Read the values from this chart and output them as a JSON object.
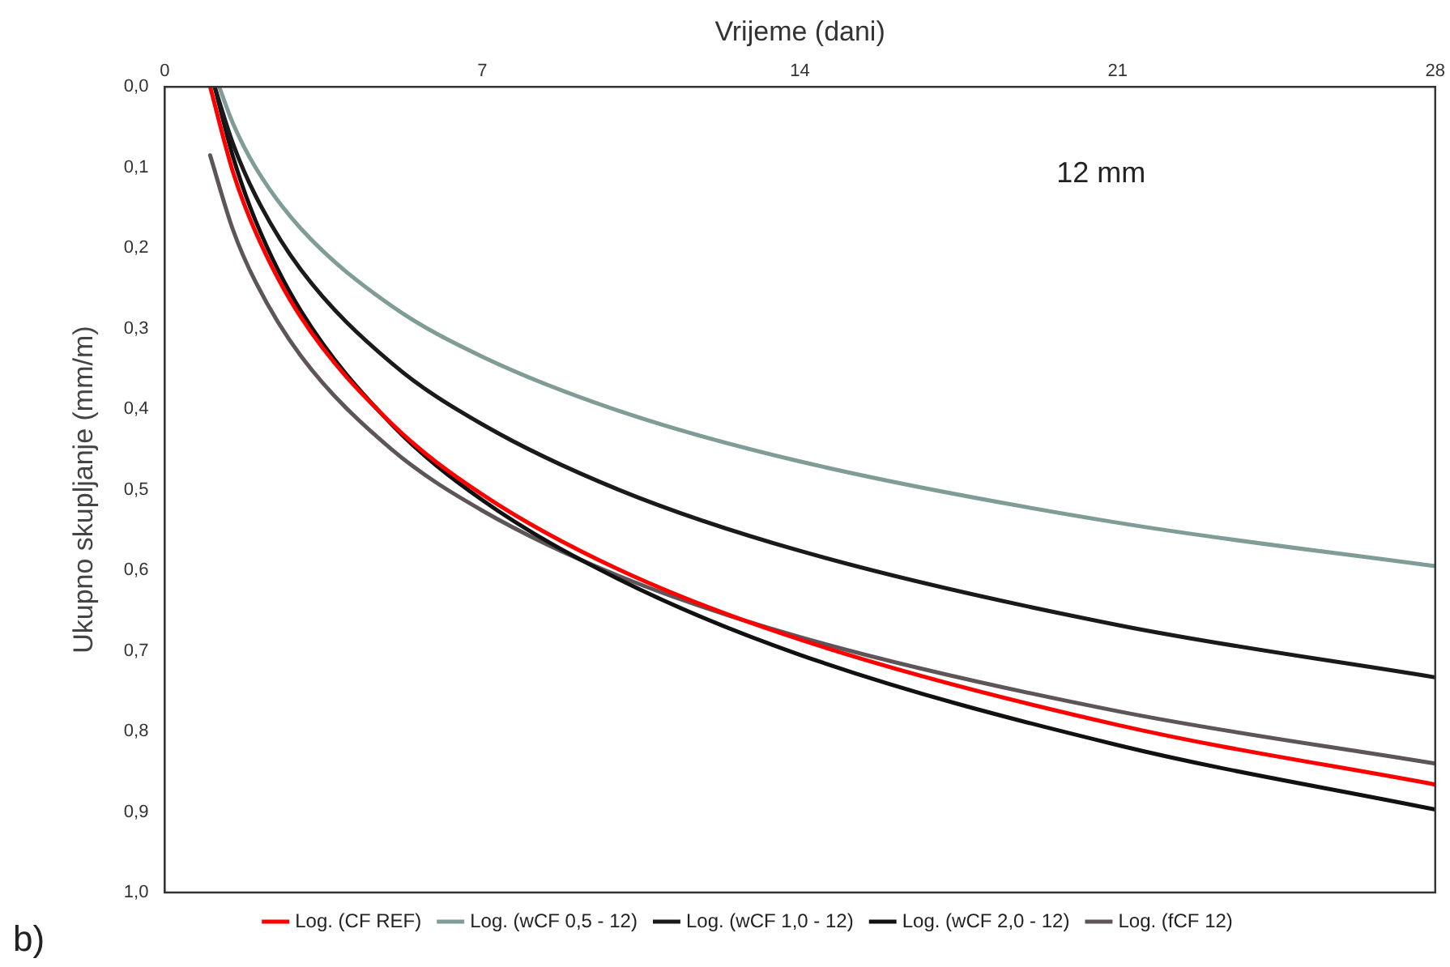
{
  "chart_data": {
    "type": "line",
    "xlabel": "Vrijeme (dani)",
    "ylabel": "Ukupno skupljanje (mm/m)",
    "xlim": [
      0,
      28
    ],
    "xticks": [
      0,
      7,
      14,
      21,
      28
    ],
    "ylim": [
      1,
      0
    ],
    "yticks": [
      {
        "value": 0,
        "label": "0,0"
      },
      {
        "value": 0.1,
        "label": "0,1"
      },
      {
        "value": 0.2,
        "label": "0,2"
      },
      {
        "value": 0.3,
        "label": "0,3"
      },
      {
        "value": 0.4,
        "label": "0,4"
      },
      {
        "value": 0.5,
        "label": "0,5"
      },
      {
        "value": 0.6,
        "label": "0,6"
      },
      {
        "value": 0.7,
        "label": "0,7"
      },
      {
        "value": 0.8,
        "label": "0,8"
      },
      {
        "value": 0.9,
        "label": "0,9"
      },
      {
        "value": 1,
        "label": "1,0"
      }
    ],
    "grid": false,
    "legend": "bottom",
    "marker": "none",
    "line_style": "solid",
    "annotations": [
      "12 mm",
      "b)"
    ],
    "series": [
      {
        "name": "Log. (CF REF)",
        "color": "#ff0000",
        "x": [
          1,
          1.5,
          2,
          3,
          5,
          7,
          10,
          14,
          21,
          28
        ],
        "values": [
          0,
          0.105,
          0.18,
          0.286,
          0.418,
          0.506,
          0.599,
          0.686,
          0.792,
          0.866
        ]
      },
      {
        "name": "Log. (wCF 0,5 - 12)",
        "color": "#7f9c96",
        "x": [
          1.2,
          1.5,
          2,
          3,
          5,
          7,
          10,
          14,
          21,
          28
        ],
        "values": [
          0,
          0.045,
          0.1,
          0.176,
          0.272,
          0.335,
          0.402,
          0.465,
          0.541,
          0.595
        ]
      },
      {
        "name": "Log. (wCF 1,0 - 12)",
        "color": "#1a1a1a",
        "x": [
          1.1,
          1.5,
          2,
          3,
          5,
          7,
          10,
          14,
          21,
          28
        ],
        "values": [
          0,
          0.07,
          0.135,
          0.227,
          0.343,
          0.419,
          0.5,
          0.576,
          0.668,
          0.733
        ]
      },
      {
        "name": "Log. (wCF 2,0 - 12)",
        "color": "#111111",
        "x": [
          1.1,
          1.5,
          2,
          3,
          5,
          7,
          10,
          14,
          21,
          28
        ],
        "values": [
          0,
          0.086,
          0.166,
          0.278,
          0.419,
          0.513,
          0.611,
          0.705,
          0.817,
          0.897
        ]
      },
      {
        "name": "Log. (fCF 12)",
        "color": "#5e5558",
        "x": [
          1,
          1.5,
          2,
          3,
          5,
          7,
          10,
          14,
          21,
          28
        ],
        "values": [
          0.085,
          0.177,
          0.242,
          0.334,
          0.45,
          0.526,
          0.607,
          0.683,
          0.775,
          0.84
        ]
      }
    ]
  }
}
